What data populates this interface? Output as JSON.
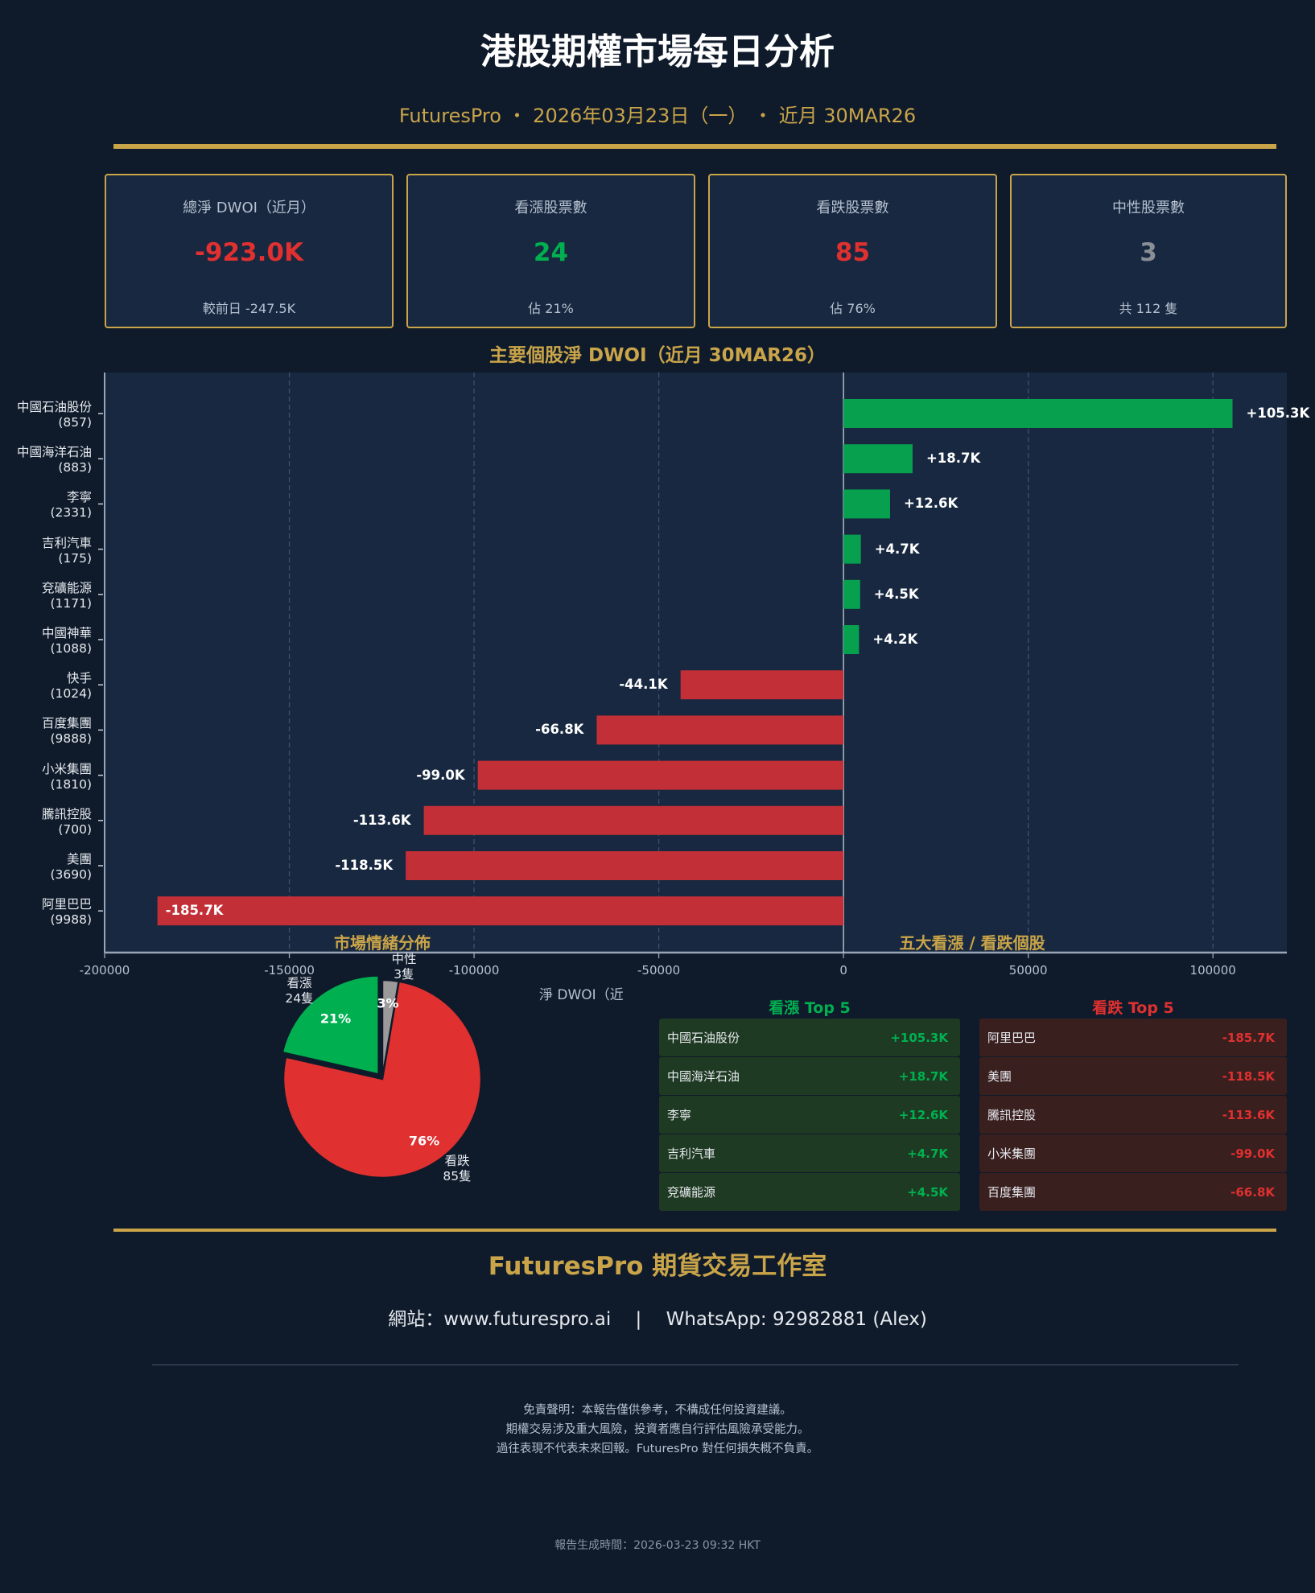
{
  "header": {
    "title": "港股期權市場每日分析",
    "subtitle": "FuturesPro ・ 2026年03月23日（一） ・ 近月 30MAR26"
  },
  "cards": [
    {
      "label": "總淨 DWOI（近月）",
      "value": "-923.0K",
      "sub": "較前日 -247.5K",
      "color": "#e03030"
    },
    {
      "label": "看漲股票數",
      "value": "24",
      "sub": "佔 21%",
      "color": "#00b050"
    },
    {
      "label": "看跌股票數",
      "value": "85",
      "sub": "佔 76%",
      "color": "#e03030"
    },
    {
      "label": "中性股票數",
      "value": "3",
      "sub": "共 112 隻",
      "color": "#8a8f96"
    }
  ],
  "chart_data": {
    "type": "bar",
    "orientation": "horizontal",
    "title": "主要個股淨 DWOI（近月 30MAR26）",
    "xlabel": "淨 DWOI（近",
    "xlim": [
      -200000,
      120000
    ],
    "xticks": [
      "-200000",
      "-150000",
      "-100000",
      "-50000",
      "0",
      "50000",
      "100000"
    ],
    "grid": true,
    "categories": [
      "中國石油股份\n(857)",
      "中國海洋石油\n(883)",
      "李寧\n(2331)",
      "吉利汽車\n(175)",
      "兗礦能源\n(1171)",
      "中國神華\n(1088)",
      "快手\n(1024)",
      "百度集團\n(9888)",
      "小米集團\n(1810)",
      "騰訊控股\n(700)",
      "美團\n(3690)",
      "阿里巴巴\n(9988)"
    ],
    "values": [
      105300,
      18700,
      12600,
      4700,
      4500,
      4200,
      -44100,
      -66800,
      -99000,
      -113600,
      -118500,
      -185700
    ],
    "data_labels": [
      "+105.3K",
      "+18.7K",
      "+12.6K",
      "+4.7K",
      "+4.5K",
      "+4.2K",
      "-44.1K",
      "-66.8K",
      "-99.0K",
      "-113.6K",
      "-118.5K",
      "-185.7K"
    ],
    "colors": {
      "positive": "#07a04f",
      "negative": "#c22f36"
    }
  },
  "pie": {
    "title": "市場情緒分佈",
    "slices": [
      {
        "label": "中性",
        "count": "3隻",
        "value": 3,
        "pct": "3%",
        "color": "#9a9a9a"
      },
      {
        "label": "看跌",
        "count": "85隻",
        "value": 85,
        "pct": "76%",
        "color": "#e03030"
      },
      {
        "label": "看漲",
        "count": "24隻",
        "value": 24,
        "pct": "21%",
        "color": "#00b050"
      }
    ]
  },
  "tops": {
    "title": "五大看漲 / 看跌個股",
    "bull": {
      "header": "看漲 Top 5",
      "rows": [
        [
          "中國石油股份",
          "+105.3K"
        ],
        [
          "中國海洋石油",
          "+18.7K"
        ],
        [
          "李寧",
          "+12.6K"
        ],
        [
          "吉利汽車",
          "+4.7K"
        ],
        [
          "兗礦能源",
          "+4.5K"
        ]
      ]
    },
    "bear": {
      "header": "看跌 Top 5",
      "rows": [
        [
          "阿里巴巴",
          "-185.7K"
        ],
        [
          "美團",
          "-118.5K"
        ],
        [
          "騰訊控股",
          "-113.6K"
        ],
        [
          "小米集團",
          "-99.0K"
        ],
        [
          "百度集團",
          "-66.8K"
        ]
      ]
    }
  },
  "footer": {
    "title": "FuturesPro 期貨交易工作室",
    "contact": "網站：www.futurespro.ai　 |　 WhatsApp: 92982881 (Alex)",
    "disclaimer": [
      "免責聲明：本報告僅供參考，不構成任何投資建議。",
      "期權交易涉及重大風險，投資者應自行評估風險承受能力。",
      "過往表現不代表未來回報。FuturesPro 對任何損失概不負責。"
    ],
    "generated": "報告生成時間：2026-03-23 09:32 HKT"
  }
}
